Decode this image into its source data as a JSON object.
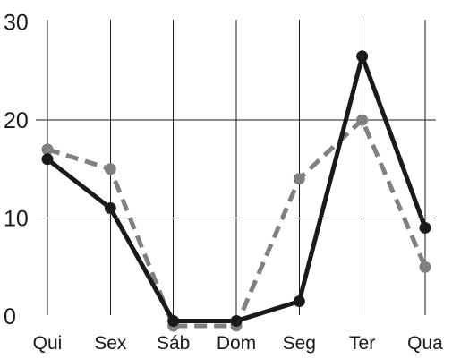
{
  "chart_data": {
    "type": "line",
    "title": "",
    "xlabel": "",
    "ylabel": "",
    "categories": [
      "Qui",
      "Sex",
      "Sáb",
      "Dom",
      "Seg",
      "Ter",
      "Qua"
    ],
    "ylim": [
      0,
      30
    ],
    "yticks": [
      0,
      10,
      20,
      30
    ],
    "grid": true,
    "legend": "none",
    "series": [
      {
        "values": [
          16,
          11,
          -0.5,
          -0.5,
          1.5,
          26.5,
          9
        ],
        "color": "#1a1a1a",
        "style": "solid"
      },
      {
        "values": [
          17,
          15,
          -1,
          -1,
          14,
          20,
          5
        ],
        "color": "#808080",
        "style": "dashed"
      }
    ]
  }
}
